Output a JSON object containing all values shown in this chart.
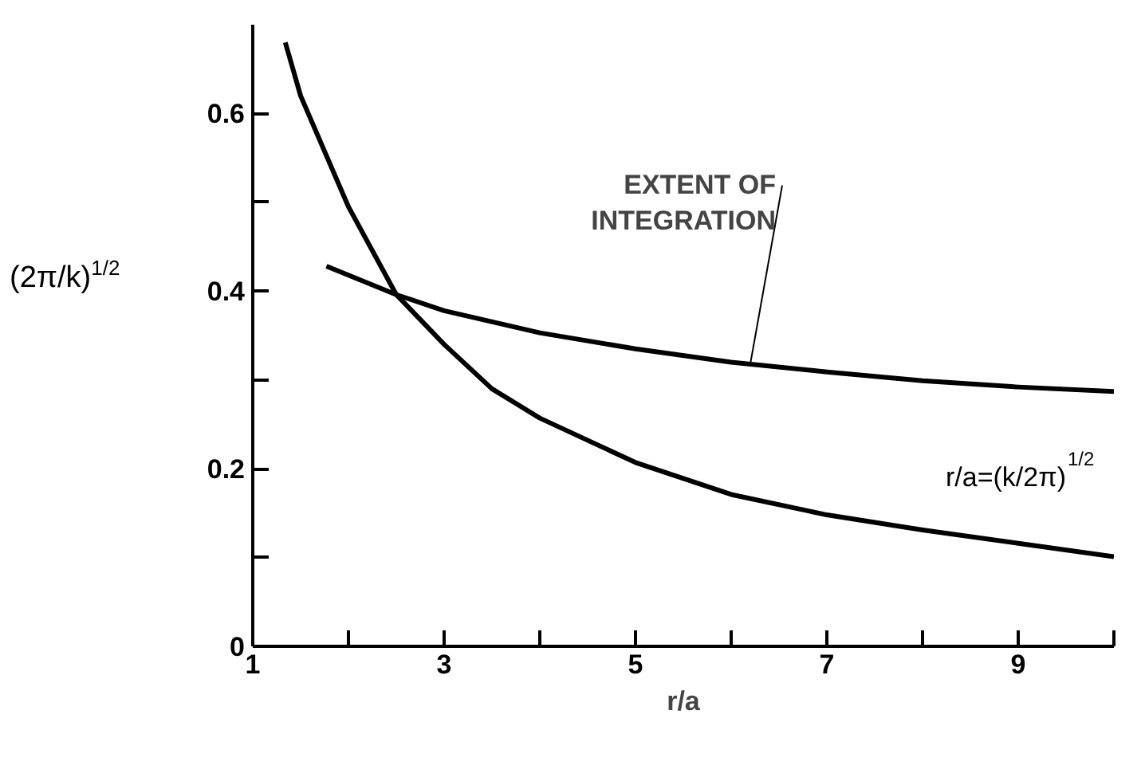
{
  "chart_data": {
    "type": "line",
    "xlabel": "r/a",
    "ylabel": "(2π/k)$^{1/2}$",
    "xlim": [
      1,
      10
    ],
    "ylim": [
      0,
      0.7
    ],
    "xticks": [
      1,
      {
        "value": 2,
        "label": null
      },
      3,
      {
        "value": 4,
        "label": null
      },
      5,
      {
        "value": 6,
        "label": null
      },
      7,
      {
        "value": 8,
        "label": null
      },
      9,
      {
        "value": 10,
        "label": null
      }
    ],
    "yticks": [
      0,
      {
        "value": 0.1,
        "label": null
      },
      0.2,
      {
        "value": 0.3,
        "label": null
      },
      0.4,
      {
        "value": 0.5,
        "label": null
      },
      0.6
    ],
    "line_style": "solid",
    "grid": false,
    "series": [
      {
        "name": "r/a=(k/2π)$^{1/2}$",
        "color": "#000000",
        "x": [
          1.34,
          1.5,
          2,
          2.5,
          3,
          3.5,
          4,
          5,
          6,
          7,
          8,
          9,
          10
        ],
        "values": [
          0.68,
          0.62,
          0.495,
          0.396,
          0.34,
          0.29,
          0.257,
          0.207,
          0.171,
          0.148,
          0.131,
          0.116,
          0.101
        ]
      },
      {
        "color": "#000000",
        "x": [
          1.77,
          2.5,
          3,
          4,
          5,
          6,
          7,
          8,
          9,
          10
        ],
        "values": [
          0.428,
          0.396,
          0.378,
          0.353,
          0.335,
          0.32,
          0.309,
          0.299,
          0.292,
          0.287
        ]
      }
    ],
    "annotations": [
      {
        "text": "EXTENT OF\nINTEGRATION",
        "x": 6.2,
        "y": 0.318
      }
    ]
  }
}
